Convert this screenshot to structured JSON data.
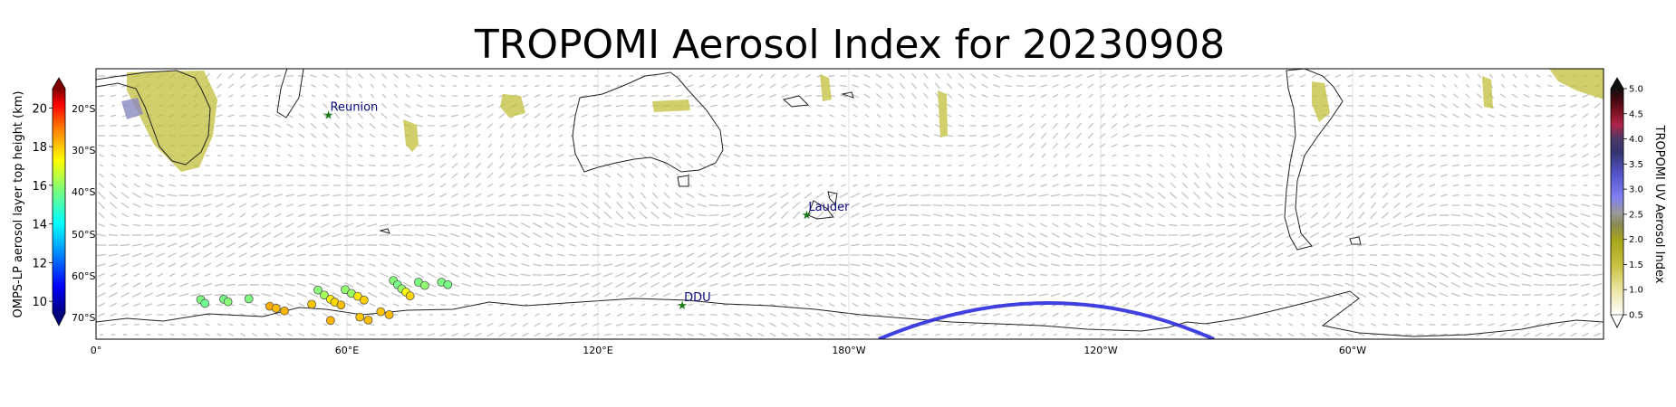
{
  "title": "TROPOMI Aerosol Index for 20230908",
  "left_colorbar": {
    "label": "OMPS-LP aerosol layer top height (km)",
    "ticks": [
      "10",
      "12",
      "14",
      "16",
      "18",
      "20"
    ],
    "range": [
      9.4,
      21.0
    ]
  },
  "right_colorbar": {
    "label": "TROPOMI UV Aerosol Index",
    "ticks": [
      "0.5",
      "1.0",
      "1.5",
      "2.0",
      "2.5",
      "3.0",
      "3.5",
      "4.0",
      "4.5",
      "5.0"
    ],
    "range": [
      0.5,
      5.0
    ]
  },
  "lat_labels": [
    "20°S",
    "30°S",
    "40°S",
    "50°S",
    "60°S",
    "70°S"
  ],
  "lon_labels": [
    "0°",
    "60°E",
    "120°E",
    "180°W",
    "120°W",
    "60°W"
  ],
  "stations": [
    {
      "name": "Reunion",
      "lon": 55.5,
      "lat": -21.0
    },
    {
      "name": "Lauder",
      "lon": 169.7,
      "lat": -45.0
    },
    {
      "name": "DDU",
      "lon": 140.0,
      "lat": -66.7
    }
  ],
  "colors": {
    "station_marker": "#1a7a1a",
    "station_label": "#0a0a80",
    "coastline": "#222222",
    "wind_arrows": "#b4b4b4",
    "orbit_track": "#2b2bdd"
  },
  "chart_data": {
    "type": "scatter",
    "lon_range": [
      0,
      360
    ],
    "lat_range": [
      -75,
      -10
    ],
    "series": [
      {
        "points": [
          {
            "lon": 25,
            "lat": -65.5,
            "height": 15.2
          },
          {
            "lon": 26,
            "lat": -66.4,
            "height": 15.0
          },
          {
            "lon": 30.5,
            "lat": -65.4,
            "height": 15.1
          },
          {
            "lon": 31.5,
            "lat": -66.0,
            "height": 15.3
          },
          {
            "lon": 36.5,
            "lat": -65.3,
            "height": 15.2
          },
          {
            "lon": 41.5,
            "lat": -67.1,
            "height": 17.6
          },
          {
            "lon": 43,
            "lat": -67.6,
            "height": 17.4
          },
          {
            "lon": 45,
            "lat": -68.2,
            "height": 17.5
          },
          {
            "lon": 51.5,
            "lat": -66.6,
            "height": 17.3
          },
          {
            "lon": 53,
            "lat": -63.2,
            "height": 15.3
          },
          {
            "lon": 54.5,
            "lat": -64.4,
            "height": 15.6
          },
          {
            "lon": 56,
            "lat": -65.4,
            "height": 16.8
          },
          {
            "lon": 57,
            "lat": -66.1,
            "height": 17.1
          },
          {
            "lon": 58.5,
            "lat": -66.8,
            "height": 17.4
          },
          {
            "lon": 56,
            "lat": -70.5,
            "height": 17.5
          },
          {
            "lon": 59.5,
            "lat": -63.1,
            "height": 15.4
          },
          {
            "lon": 61,
            "lat": -64.0,
            "height": 15.5
          },
          {
            "lon": 62.5,
            "lat": -64.7,
            "height": 16.9
          },
          {
            "lon": 64,
            "lat": -65.6,
            "height": 17.2
          },
          {
            "lon": 63,
            "lat": -69.7,
            "height": 17.3
          },
          {
            "lon": 65,
            "lat": -70.4,
            "height": 17.4
          },
          {
            "lon": 68,
            "lat": -68.4,
            "height": 17.3
          },
          {
            "lon": 70,
            "lat": -69.1,
            "height": 17.4
          },
          {
            "lon": 71,
            "lat": -60.9,
            "height": 15.3
          },
          {
            "lon": 72,
            "lat": -61.9,
            "height": 15.1
          },
          {
            "lon": 73,
            "lat": -62.9,
            "height": 15.5
          },
          {
            "lon": 74,
            "lat": -63.7,
            "height": 16.6
          },
          {
            "lon": 75,
            "lat": -64.6,
            "height": 17.1
          },
          {
            "lon": 77,
            "lat": -61.3,
            "height": 15.2
          },
          {
            "lon": 78.5,
            "lat": -62.1,
            "height": 15.4
          },
          {
            "lon": 82.5,
            "lat": -61.3,
            "height": 15.2
          },
          {
            "lon": 84,
            "lat": -61.9,
            "height": 15.1
          }
        ]
      }
    ]
  }
}
